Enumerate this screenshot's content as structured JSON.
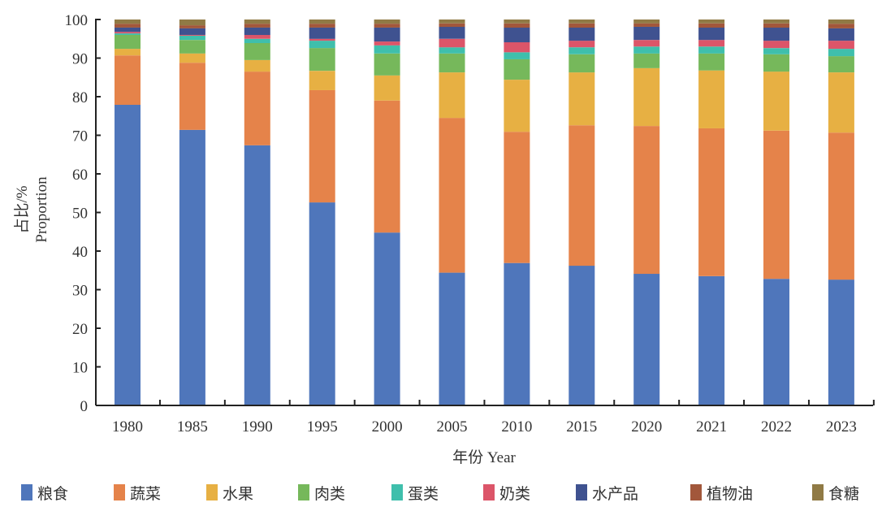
{
  "chart_data": {
    "type": "bar",
    "stacked": true,
    "title": "",
    "xlabel": "年份 Year",
    "ylabel_lines": [
      "占比/%",
      "Proportion"
    ],
    "ylim": [
      0,
      100
    ],
    "yticks": [
      0,
      10,
      20,
      30,
      40,
      50,
      60,
      70,
      80,
      90,
      100
    ],
    "grid": false,
    "legend_position": "bottom",
    "categories": [
      "1980",
      "1985",
      "1990",
      "1995",
      "2000",
      "2005",
      "2010",
      "2015",
      "2020",
      "2021",
      "2022",
      "2023"
    ],
    "series": [
      {
        "name": "粮食",
        "color": "#4f76bb",
        "values": [
          77.9,
          71.4,
          67.4,
          52.6,
          44.8,
          34.4,
          36.9,
          36.2,
          34.1,
          33.5,
          32.8,
          32.6
        ]
      },
      {
        "name": "蔬菜",
        "color": "#e5834a",
        "values": [
          12.8,
          17.4,
          19.1,
          29.1,
          34.2,
          40.1,
          34.0,
          36.4,
          38.3,
          38.3,
          38.4,
          38.1
        ]
      },
      {
        "name": "水果",
        "color": "#e7b043",
        "values": [
          1.7,
          2.4,
          3.0,
          5.0,
          6.5,
          11.8,
          13.5,
          13.7,
          15.0,
          15.0,
          15.3,
          15.6
        ]
      },
      {
        "name": "肉类",
        "color": "#76b85b",
        "values": [
          3.6,
          3.5,
          4.4,
          5.9,
          5.7,
          4.9,
          5.3,
          4.7,
          3.8,
          4.4,
          4.5,
          4.2
        ]
      },
      {
        "name": "蛋类",
        "color": "#3fbfac",
        "values": [
          0.4,
          1.1,
          1.1,
          1.9,
          2.1,
          1.6,
          1.8,
          1.8,
          1.8,
          1.8,
          1.6,
          1.9
        ]
      },
      {
        "name": "奶类",
        "color": "#dc5569",
        "values": [
          0.4,
          0.2,
          1.0,
          0.5,
          1.0,
          2.2,
          2.6,
          1.7,
          1.7,
          1.7,
          1.9,
          2.1
        ]
      },
      {
        "name": "水产品",
        "color": "#3f5290",
        "values": [
          1.1,
          1.7,
          1.9,
          2.9,
          3.6,
          3.1,
          3.8,
          3.4,
          3.4,
          3.2,
          3.4,
          3.2
        ]
      },
      {
        "name": "植物油",
        "color": "#a2573b",
        "values": [
          1.0,
          0.8,
          1.0,
          1.0,
          1.0,
          0.9,
          1.1,
          1.1,
          0.9,
          1.1,
          1.1,
          1.2
        ]
      },
      {
        "name": "食糖",
        "color": "#907a45",
        "values": [
          1.1,
          1.5,
          1.1,
          1.1,
          1.1,
          1.0,
          1.0,
          1.0,
          1.0,
          1.0,
          1.0,
          1.1
        ]
      }
    ]
  }
}
